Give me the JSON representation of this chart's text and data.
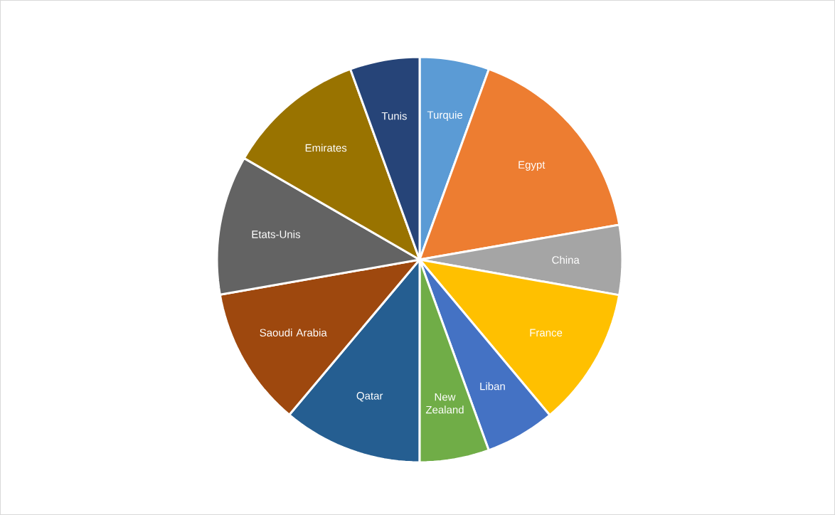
{
  "chart_data": {
    "type": "pie",
    "categories": [
      "Turquie",
      "Egypt",
      "China",
      "France",
      "Liban",
      "New Zealand",
      "Qatar",
      "Saoudi Arabia",
      "Etats-Unis",
      "Emirates",
      "Tunis"
    ],
    "values": [
      5.55,
      16.7,
      5.55,
      11.11,
      5.55,
      5.55,
      11.11,
      11.11,
      11.11,
      11.11,
      5.55
    ],
    "colors": [
      "#5b9bd5",
      "#ed7d31",
      "#a5a5a5",
      "#ffc000",
      "#4472c4",
      "#70ad47",
      "#255e91",
      "#9e480e",
      "#636363",
      "#997300",
      "#264478"
    ],
    "data_labels": false
  }
}
